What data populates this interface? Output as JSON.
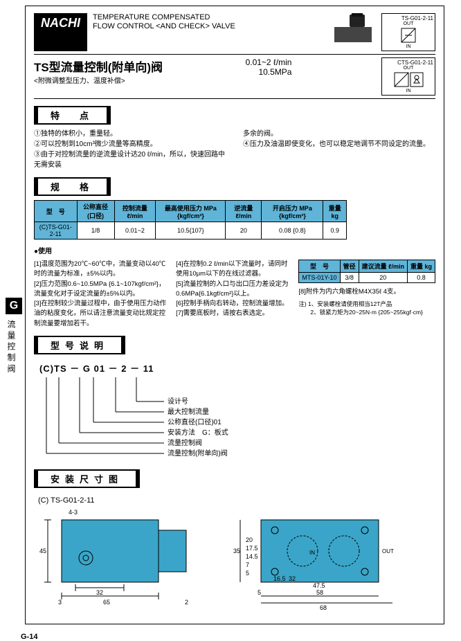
{
  "logo": "NACHI",
  "header": {
    "line1": "TEMPERATURE COMPENSATED",
    "line2": "FLOW CONTROL <AND CHECK> VALVE"
  },
  "symbols": {
    "top": {
      "model": "TS-G01-2-11",
      "out": "OUT",
      "in": "IN"
    },
    "bottom": {
      "model": "CTS-G01-2-11",
      "out": "OUT",
      "in": "IN"
    }
  },
  "title_cn": "TS型流量控制(附单向)阀",
  "subtitle_cn": "<附微调整型压力、温度补偿>",
  "range": "0.01~2 ℓ/min",
  "pressure": "10.5MPa",
  "side": {
    "g": "G",
    "label": "流量控制阀"
  },
  "sec_features": "特　点",
  "features_left": [
    "①独特的体积小，重量轻。",
    "②可以控制到10cm³微少流量等高精度。",
    "③由于对控制流量的逆流量设计达20 ℓ/min，所以，快速回路中无需安装"
  ],
  "features_right": [
    "多余的阀。",
    "④压力及油温即使变化，也可以稳定地调节不同设定的流量。"
  ],
  "sec_spec": "规　格",
  "spec_table": {
    "headers": [
      "型　号",
      "公称直径(口径)",
      "控制流量 ℓ/min",
      "最高使用压力 MPa {kgf/cm²}",
      "逆流量 ℓ/min",
      "开启压力 MPa {kgf/cm²}",
      "重量 kg"
    ],
    "row": [
      "(C)TS-G01-2-11",
      "1/8",
      "0.01~2",
      "10.5{107}",
      "20",
      "0.08 {0.8}",
      "0.9"
    ]
  },
  "usage_title": "●使用",
  "usage_left": [
    "[1]温度范围为20℃~60℃中，流量变动以40℃时的流量为标准，±5%以内。",
    "[2]压力范围0.6~10.5MPa {6.1~107kgf/cm²}，流量变化对于设定流量的±5%以内。",
    "[3]在控制较少流量过程中，由于使用压力动作油的粘度变化，所以请注意流量变动比规定控制流量要增加若干。"
  ],
  "usage_right": [
    "[4]在控制0.2 ℓ/min以下流量时，请同时使用10μm以下的在线过滤器。",
    "[5]流量控制的入口与出口压力差设定为0.6MPa{6.1kgf/cm²}以上。",
    "[6]控制手柄向右转动，控制流量增加。",
    "[7]需要底板时，请按右表选定。"
  ],
  "filter_table": {
    "headers": [
      "型　号",
      "管径",
      "建议流量 ℓ/min",
      "重量 kg"
    ],
    "row": [
      "MTS-01Y-10",
      "3/8",
      "20",
      "0.8"
    ]
  },
  "accessory_note": "[8]附件为内六角螺栓M4X35ℓ 4支。",
  "install_notes": [
    "注) 1、安装螺栓请使用相当12T产品",
    "　　2、锁紧力矩为20~25N·m {205~255kgf·cm}"
  ],
  "sec_model": "型号说明",
  "model_code": "(C)TS － G 01 － 2 － 11",
  "model_labels": [
    "设计号",
    "最大控制流量",
    "公称直径(口径)01",
    "安装方法　G：板式",
    "流量控制阀",
    "流量控制(附单向)阀"
  ],
  "sec_dim": "安装尺寸图",
  "dim_model": "(C) TS-G01-2-11",
  "dims_left": {
    "w1": "32",
    "w2": "65",
    "h": "45",
    "gap_l": "3",
    "gap_r": "2",
    "t": "4-3",
    "color": "#3aa5c8"
  },
  "dims_right": {
    "a": "58",
    "b": "47.5",
    "c": "32",
    "d": "16.5",
    "e": "5",
    "f": "68",
    "g": "5",
    "h": "7",
    "i": "14.5",
    "j": "17.5",
    "k": "20",
    "l": "35",
    "in": "IN",
    "out": "OUT",
    "color": "#3aa5c8"
  },
  "footer": "G-14"
}
